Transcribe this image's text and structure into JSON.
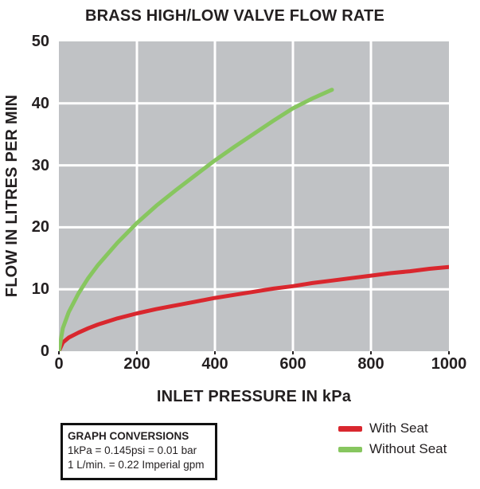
{
  "title": "BRASS HIGH/LOW VALVE FLOW RATE",
  "chart_data": {
    "type": "line",
    "title": "BRASS HIGH/LOW VALVE FLOW RATE",
    "xlabel": "INLET PRESSURE IN kPa",
    "ylabel": "FLOW IN LITRES PER MIN",
    "xlim": [
      0,
      1000
    ],
    "ylim": [
      0,
      50
    ],
    "x_ticks": [
      0,
      200,
      400,
      600,
      800,
      1000
    ],
    "y_ticks": [
      0,
      10,
      20,
      30,
      40,
      50
    ],
    "grid": true,
    "plot_background": "#c0c2c5",
    "gridline_color": "#ffffff",
    "legend_position": "bottom-right",
    "series": [
      {
        "name": "With Seat",
        "color": "#d9272e",
        "points": [
          [
            0,
            0
          ],
          [
            10,
            1.4
          ],
          [
            25,
            2.2
          ],
          [
            50,
            3.0
          ],
          [
            75,
            3.7
          ],
          [
            100,
            4.3
          ],
          [
            150,
            5.3
          ],
          [
            200,
            6.1
          ],
          [
            250,
            6.8
          ],
          [
            300,
            7.4
          ],
          [
            350,
            8.0
          ],
          [
            400,
            8.6
          ],
          [
            450,
            9.1
          ],
          [
            500,
            9.6
          ],
          [
            550,
            10.1
          ],
          [
            600,
            10.5
          ],
          [
            650,
            11.0
          ],
          [
            700,
            11.4
          ],
          [
            750,
            11.8
          ],
          [
            800,
            12.2
          ],
          [
            850,
            12.6
          ],
          [
            900,
            12.9
          ],
          [
            950,
            13.3
          ],
          [
            1000,
            13.6
          ]
        ]
      },
      {
        "name": "Without Seat",
        "color": "#87c65f",
        "points": [
          [
            0,
            0
          ],
          [
            10,
            3.7
          ],
          [
            25,
            6.3
          ],
          [
            50,
            9.3
          ],
          [
            75,
            11.8
          ],
          [
            100,
            13.9
          ],
          [
            150,
            17.5
          ],
          [
            200,
            20.7
          ],
          [
            250,
            23.5
          ],
          [
            300,
            26.0
          ],
          [
            350,
            28.4
          ],
          [
            400,
            30.8
          ],
          [
            450,
            33.0
          ],
          [
            500,
            35.1
          ],
          [
            550,
            37.2
          ],
          [
            600,
            39.2
          ],
          [
            650,
            40.8
          ],
          [
            700,
            42.2
          ]
        ]
      }
    ]
  },
  "legend": {
    "items": [
      {
        "label": "With Seat",
        "color": "#d9272e"
      },
      {
        "label": "Without Seat",
        "color": "#87c65f"
      }
    ]
  },
  "conversions_box": {
    "title": "GRAPH CONVERSIONS",
    "lines": [
      "1kPa = 0.145psi = 0.01 bar",
      "1 L/min. = 0.22 Imperial gpm"
    ]
  }
}
